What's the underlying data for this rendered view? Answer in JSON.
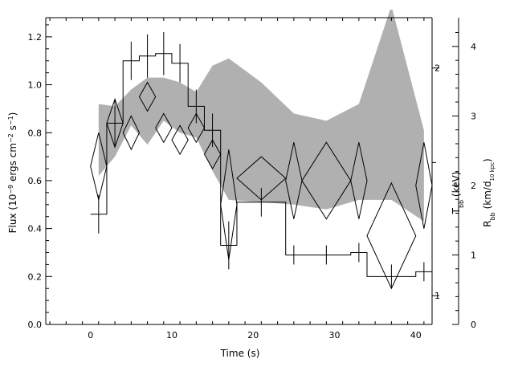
{
  "chart_data": {
    "type": "line",
    "title": "",
    "xlabel": "Time (s)",
    "ylabel_left": "Flux (10⁻⁹ ergs cm⁻² s⁻¹)",
    "ylabel_right_inner": "Tₕₕ (keV)",
    "ylabel_right_inner_text": "T",
    "ylabel_right_inner_sub": "bb",
    "ylabel_right_inner_unit": " (keV)",
    "ylabel_right_outer_text": "R",
    "ylabel_right_outer_sub": "bb",
    "ylabel_right_outer_unit_a": " (km/d",
    "ylabel_right_outer_unit_sub": "10 kpc",
    "ylabel_right_outer_unit_b": ")",
    "ylabel_left_pre": "Flux (10",
    "ylabel_left_exp1": "−9",
    "ylabel_left_mid": " ergs cm",
    "ylabel_left_exp2": "−2",
    "ylabel_left_mid2": " s",
    "ylabel_left_exp3": "−1",
    "ylabel_left_post": ")",
    "xlim": [
      -5.5,
      42
    ],
    "ylim": [
      0,
      1.28
    ],
    "x_ticks": [
      "0",
      "10",
      "20",
      "30",
      "40"
    ],
    "x_tick_values": [
      0,
      10,
      20,
      30,
      40
    ],
    "y_ticks": [
      "0.0",
      "0.2",
      "0.4",
      "0.6",
      "0.8",
      "1.0",
      "1.2"
    ],
    "y_tick_values": [
      0.0,
      0.2,
      0.4,
      0.6,
      0.8,
      1.0,
      1.2
    ],
    "t_axis": {
      "ticks": [
        "1",
        "2"
      ],
      "tick_values": [
        1,
        2
      ],
      "flux_at_1": 0.12,
      "flux_at_2": 1.07
    },
    "r_axis": {
      "ticks": [
        "0",
        "1",
        "2",
        "3",
        "4"
      ],
      "tick_values": [
        0,
        1,
        2,
        3,
        4
      ],
      "flux_per_unit": 0.29
    },
    "flux_series": {
      "name": "",
      "points": [
        {
          "t": 1,
          "dt": 1,
          "flux": 0.46,
          "err": 0.08
        },
        {
          "t": 3,
          "dt": 1,
          "flux": 0.84,
          "err": 0.1
        },
        {
          "t": 5,
          "dt": 1,
          "flux": 1.1,
          "err": 0.08
        },
        {
          "t": 7,
          "dt": 1,
          "flux": 1.12,
          "err": 0.09
        },
        {
          "t": 9,
          "dt": 1,
          "flux": 1.13,
          "err": 0.09
        },
        {
          "t": 11,
          "dt": 1,
          "flux": 1.09,
          "err": 0.08
        },
        {
          "t": 13,
          "dt": 1,
          "flux": 0.91,
          "err": 0.07
        },
        {
          "t": 15,
          "dt": 1,
          "flux": 0.81,
          "err": 0.07
        },
        {
          "t": 17,
          "dt": 1,
          "flux": 0.33,
          "err": 0.1
        },
        {
          "t": 21,
          "dt": 3,
          "flux": 0.51,
          "err": 0.06
        },
        {
          "t": 25,
          "dt": 1,
          "flux": 0.29,
          "err": 0.04
        },
        {
          "t": 29,
          "dt": 3,
          "flux": 0.29,
          "err": 0.04
        },
        {
          "t": 33,
          "dt": 1,
          "flux": 0.3,
          "err": 0.04
        },
        {
          "t": 37,
          "dt": 3,
          "flux": 0.2,
          "err": 0.05
        },
        {
          "t": 41,
          "dt": 1,
          "flux": 0.22,
          "err": 0.04
        }
      ]
    },
    "temperature_diamonds": [
      {
        "t": 1,
        "hw": 1.0,
        "y": 0.66,
        "dy": 0.14
      },
      {
        "t": 3,
        "hw": 1.0,
        "y": 0.84,
        "dy": 0.1
      },
      {
        "t": 5,
        "hw": 1.0,
        "y": 0.8,
        "dy": 0.07
      },
      {
        "t": 7,
        "hw": 1.0,
        "y": 0.95,
        "dy": 0.06
      },
      {
        "t": 9,
        "hw": 1.0,
        "y": 0.82,
        "dy": 0.06
      },
      {
        "t": 11,
        "hw": 1.0,
        "y": 0.77,
        "dy": 0.06
      },
      {
        "t": 13,
        "hw": 1.0,
        "y": 0.82,
        "dy": 0.06
      },
      {
        "t": 15,
        "hw": 1.0,
        "y": 0.71,
        "dy": 0.06
      },
      {
        "t": 17,
        "hw": 1.0,
        "y": 0.5,
        "dy": 0.23
      },
      {
        "t": 21,
        "hw": 3.0,
        "y": 0.61,
        "dy": 0.09
      },
      {
        "t": 25,
        "hw": 1.0,
        "y": 0.6,
        "dy": 0.16
      },
      {
        "t": 29,
        "hw": 3.0,
        "y": 0.6,
        "dy": 0.16
      },
      {
        "t": 33,
        "hw": 1.0,
        "y": 0.6,
        "dy": 0.16
      },
      {
        "t": 37,
        "hw": 3.0,
        "y": 0.37,
        "dy": 0.22
      },
      {
        "t": 41,
        "hw": 1.0,
        "y": 0.58,
        "dy": 0.18
      }
    ],
    "radius_band": {
      "upper": [
        [
          1,
          0.92
        ],
        [
          3,
          0.91
        ],
        [
          5,
          0.98
        ],
        [
          7,
          1.03
        ],
        [
          9,
          1.03
        ],
        [
          11,
          1.01
        ],
        [
          13,
          0.97
        ],
        [
          15,
          1.08
        ],
        [
          17,
          1.11
        ],
        [
          21,
          1.01
        ],
        [
          25,
          0.88
        ],
        [
          29,
          0.85
        ],
        [
          33,
          0.92
        ],
        [
          37,
          1.33
        ],
        [
          41,
          0.81
        ]
      ],
      "lower": [
        [
          1,
          0.62
        ],
        [
          3,
          0.7
        ],
        [
          5,
          0.83
        ],
        [
          7,
          0.75
        ],
        [
          9,
          0.85
        ],
        [
          11,
          0.8
        ],
        [
          13,
          0.78
        ],
        [
          15,
          0.64
        ],
        [
          17,
          0.52
        ],
        [
          21,
          0.51
        ],
        [
          25,
          0.5
        ],
        [
          29,
          0.48
        ],
        [
          33,
          0.52
        ],
        [
          37,
          0.52
        ],
        [
          41,
          0.43
        ]
      ]
    },
    "colors": {
      "band": "#b0b0b0",
      "line": "#000000",
      "diamond_fill": "#ffffff"
    }
  }
}
